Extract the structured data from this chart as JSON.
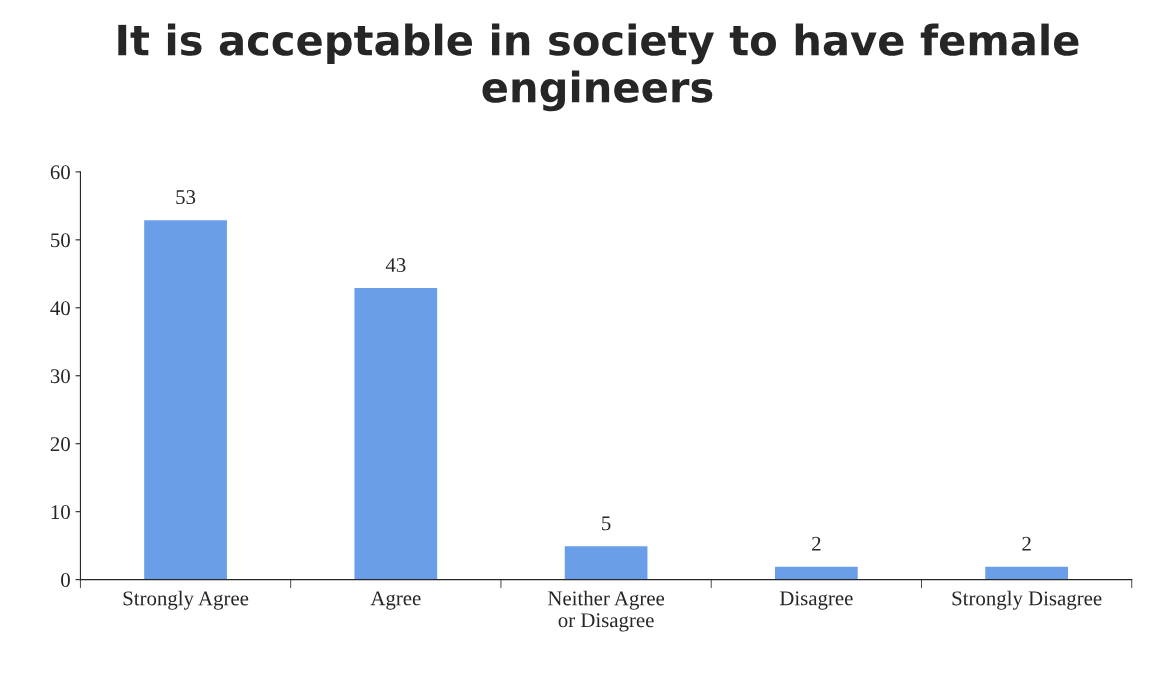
{
  "chart_data": {
    "type": "bar",
    "title": "It is acceptable in society to have female engineers",
    "categories": [
      "Strongly Agree",
      "Agree",
      "Neither Agree or Disagree",
      "Disagree",
      "Strongly Disagree"
    ],
    "values": [
      53,
      43,
      5,
      2,
      2
    ],
    "color": "#6a9ee8",
    "ylim": [
      0,
      60
    ],
    "yticks": [
      0,
      10,
      20,
      30,
      40,
      50,
      60
    ],
    "grid": false,
    "data_labels": true,
    "legend": false
  }
}
